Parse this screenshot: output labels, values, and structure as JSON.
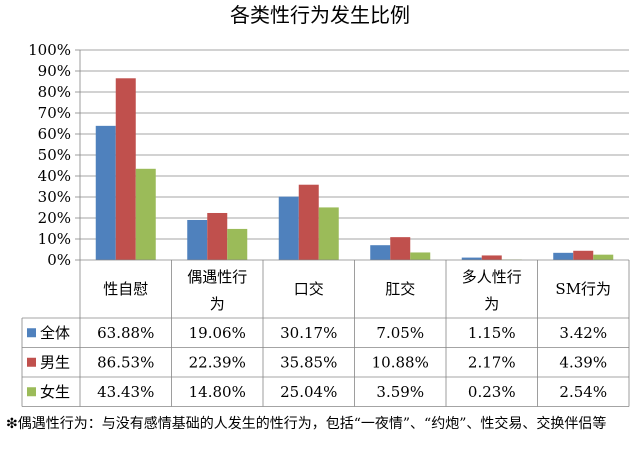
{
  "chart_data": {
    "type": "bar",
    "title": "各类性行为发生比例",
    "xlabel": "",
    "ylabel": "",
    "categories": [
      "性自慰",
      "偶遇性行为",
      "口交",
      "肛交",
      "多人性行为",
      "SM行为"
    ],
    "y_ticks": [
      "0%",
      "10%",
      "20%",
      "30%",
      "40%",
      "50%",
      "60%",
      "70%",
      "80%",
      "90%",
      "100%"
    ],
    "ylim": [
      0,
      100
    ],
    "grid": true,
    "legend": "data-table",
    "series": [
      {
        "name": "全体",
        "color": "#4F81BD",
        "values": [
          63.88,
          19.06,
          30.17,
          7.05,
          1.15,
          3.42
        ],
        "labels": [
          "63.88%",
          "19.06%",
          "30.17%",
          "7.05%",
          "1.15%",
          "3.42%"
        ]
      },
      {
        "name": "男生",
        "color": "#C0504D",
        "values": [
          86.53,
          22.39,
          35.85,
          10.88,
          2.17,
          4.39
        ],
        "labels": [
          "86.53%",
          "22.39%",
          "35.85%",
          "10.88%",
          "2.17%",
          "4.39%"
        ]
      },
      {
        "name": "女生",
        "color": "#9BBB59",
        "values": [
          43.43,
          14.8,
          25.04,
          3.59,
          0.23,
          2.54
        ],
        "labels": [
          "43.43%",
          "14.80%",
          "25.04%",
          "3.59%",
          "0.23%",
          "2.54%"
        ]
      }
    ]
  },
  "footnote": "❇偶遇性行为：与没有感情基础的人发生的性行为，包括“一夜情”、“约炮”、性交易、交换伴侣等"
}
